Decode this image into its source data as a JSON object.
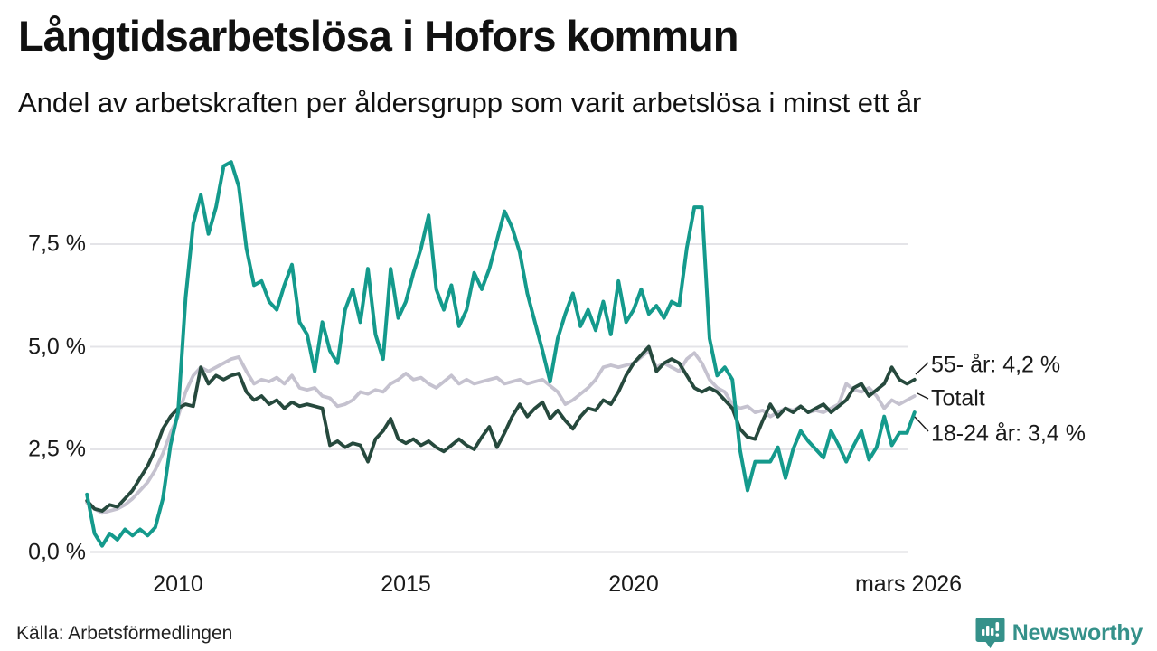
{
  "header": {
    "title": "Långtidsarbetslösa i Hofors kommun",
    "subtitle": "Andel av arbetskraften per åldersgrupp som varit arbetslösa i minst ett år"
  },
  "footer": {
    "source": "Källa: Arbetsförmedlingen",
    "brand": "Newsworthy"
  },
  "colors": {
    "teal": "#149a8c",
    "dark_green": "#26493d",
    "gray": "#c5c2cf",
    "grid": "#e4e4e8",
    "grid_zero": "#d8d8dc",
    "leader": "#1a1a1a",
    "brand_teal": "#35918a",
    "text": "#1a1a1a"
  },
  "annotations": [
    {
      "label": "55- år: 4,2 %"
    },
    {
      "label": "Totalt"
    },
    {
      "label": "18-24 år: 3,4 %"
    }
  ],
  "chart_data": {
    "type": "line",
    "title": "Långtidsarbetslösa i Hofors kommun",
    "subtitle": "Andel av arbetskraften per åldersgrupp som varit arbetslösa i minst ett år",
    "unit": "%",
    "grid": true,
    "legend_position": "end-of-line annotations (right)",
    "x_start": 2008.0,
    "x_step": 0.16667,
    "x_end": 2026.17,
    "x_end_label": "mars 2026",
    "ylim": [
      0,
      9.8
    ],
    "yticks": [
      {
        "value": 0.0,
        "label": "0,0 %"
      },
      {
        "value": 2.5,
        "label": "2,5 %"
      },
      {
        "value": 5.0,
        "label": "5,0 %"
      },
      {
        "value": 7.5,
        "label": "7,5 %"
      }
    ],
    "xticks": [
      {
        "value": 2010,
        "label": "2010"
      },
      {
        "value": 2015,
        "label": "2015"
      },
      {
        "value": 2020,
        "label": "2020"
      },
      {
        "value": 2026.17,
        "label": "mars 2026"
      }
    ],
    "series": [
      {
        "name": "Totalt",
        "color_key": "gray",
        "end_label": "Totalt",
        "end_value": 3.8,
        "values": [
          1.2,
          1.05,
          0.95,
          1.0,
          1.05,
          1.15,
          1.3,
          1.5,
          1.7,
          2.0,
          2.4,
          2.9,
          3.3,
          3.9,
          4.3,
          4.5,
          4.4,
          4.5,
          4.6,
          4.7,
          4.75,
          4.4,
          4.1,
          4.2,
          4.15,
          4.25,
          4.1,
          4.3,
          4.0,
          3.95,
          4.0,
          3.8,
          3.75,
          3.55,
          3.6,
          3.7,
          3.9,
          3.85,
          3.95,
          3.9,
          4.1,
          4.2,
          4.35,
          4.2,
          4.25,
          4.1,
          4.0,
          4.15,
          4.3,
          4.1,
          4.2,
          4.1,
          4.15,
          4.2,
          4.25,
          4.1,
          4.15,
          4.2,
          4.1,
          4.15,
          4.2,
          4.05,
          3.9,
          3.6,
          3.7,
          3.85,
          4.0,
          4.2,
          4.5,
          4.55,
          4.5,
          4.55,
          4.6,
          4.75,
          4.9,
          4.5,
          4.6,
          4.5,
          4.4,
          4.7,
          4.85,
          4.6,
          4.2,
          4.0,
          3.9,
          3.6,
          3.5,
          3.55,
          3.4,
          3.45,
          3.3,
          3.4,
          3.5,
          3.45,
          3.55,
          3.4,
          3.45,
          3.4,
          3.5,
          3.6,
          4.1,
          3.95,
          3.9,
          4.0,
          3.8,
          3.5,
          3.7,
          3.6,
          3.7,
          3.8
        ]
      },
      {
        "name": "55- år",
        "color_key": "dark_green",
        "end_label": "55- år: 4,2 %",
        "end_value": 4.2,
        "values": [
          1.25,
          1.05,
          1.0,
          1.15,
          1.1,
          1.3,
          1.5,
          1.8,
          2.1,
          2.5,
          3.0,
          3.3,
          3.5,
          3.6,
          3.55,
          4.5,
          4.1,
          4.3,
          4.2,
          4.3,
          4.35,
          3.9,
          3.7,
          3.8,
          3.6,
          3.7,
          3.5,
          3.65,
          3.55,
          3.6,
          3.55,
          3.5,
          2.6,
          2.7,
          2.55,
          2.65,
          2.6,
          2.2,
          2.75,
          2.95,
          3.25,
          2.75,
          2.65,
          2.75,
          2.6,
          2.7,
          2.55,
          2.45,
          2.6,
          2.75,
          2.6,
          2.5,
          2.8,
          3.05,
          2.55,
          2.9,
          3.3,
          3.6,
          3.3,
          3.5,
          3.65,
          3.25,
          3.45,
          3.2,
          3.0,
          3.3,
          3.5,
          3.45,
          3.7,
          3.6,
          3.9,
          4.3,
          4.6,
          4.8,
          5.0,
          4.4,
          4.6,
          4.7,
          4.6,
          4.3,
          4.0,
          3.9,
          4.0,
          3.9,
          3.7,
          3.5,
          3.0,
          2.8,
          2.75,
          3.2,
          3.6,
          3.3,
          3.5,
          3.4,
          3.55,
          3.4,
          3.5,
          3.6,
          3.4,
          3.55,
          3.7,
          4.0,
          4.1,
          3.8,
          3.95,
          4.1,
          4.5,
          4.2,
          4.1,
          4.2
        ]
      },
      {
        "name": "18-24 år",
        "color_key": "teal",
        "end_label": "18-24 år: 3,4 %",
        "end_value": 3.4,
        "values": [
          1.4,
          0.45,
          0.15,
          0.45,
          0.3,
          0.55,
          0.4,
          0.55,
          0.4,
          0.6,
          1.3,
          2.6,
          3.4,
          6.2,
          8.0,
          8.7,
          7.75,
          8.4,
          9.4,
          9.5,
          8.9,
          7.4,
          6.5,
          6.6,
          6.1,
          5.9,
          6.5,
          7.0,
          5.6,
          5.3,
          4.4,
          5.6,
          4.9,
          4.6,
          5.9,
          6.4,
          5.6,
          6.9,
          5.3,
          4.7,
          6.9,
          5.7,
          6.1,
          6.8,
          7.4,
          8.2,
          6.4,
          5.9,
          6.5,
          5.5,
          5.9,
          6.8,
          6.4,
          6.9,
          7.6,
          8.3,
          7.9,
          7.3,
          6.3,
          5.6,
          4.9,
          4.15,
          5.2,
          5.8,
          6.3,
          5.5,
          5.9,
          5.4,
          6.1,
          5.3,
          6.6,
          5.6,
          5.9,
          6.4,
          5.8,
          6.0,
          5.7,
          6.1,
          6.0,
          7.4,
          8.4,
          8.4,
          5.2,
          4.3,
          4.5,
          4.2,
          2.5,
          1.5,
          2.2,
          2.2,
          2.2,
          2.55,
          1.8,
          2.5,
          2.95,
          2.7,
          2.5,
          2.3,
          2.95,
          2.6,
          2.2,
          2.6,
          2.95,
          2.25,
          2.55,
          3.3,
          2.6,
          2.9,
          2.9,
          3.4
        ]
      }
    ]
  }
}
